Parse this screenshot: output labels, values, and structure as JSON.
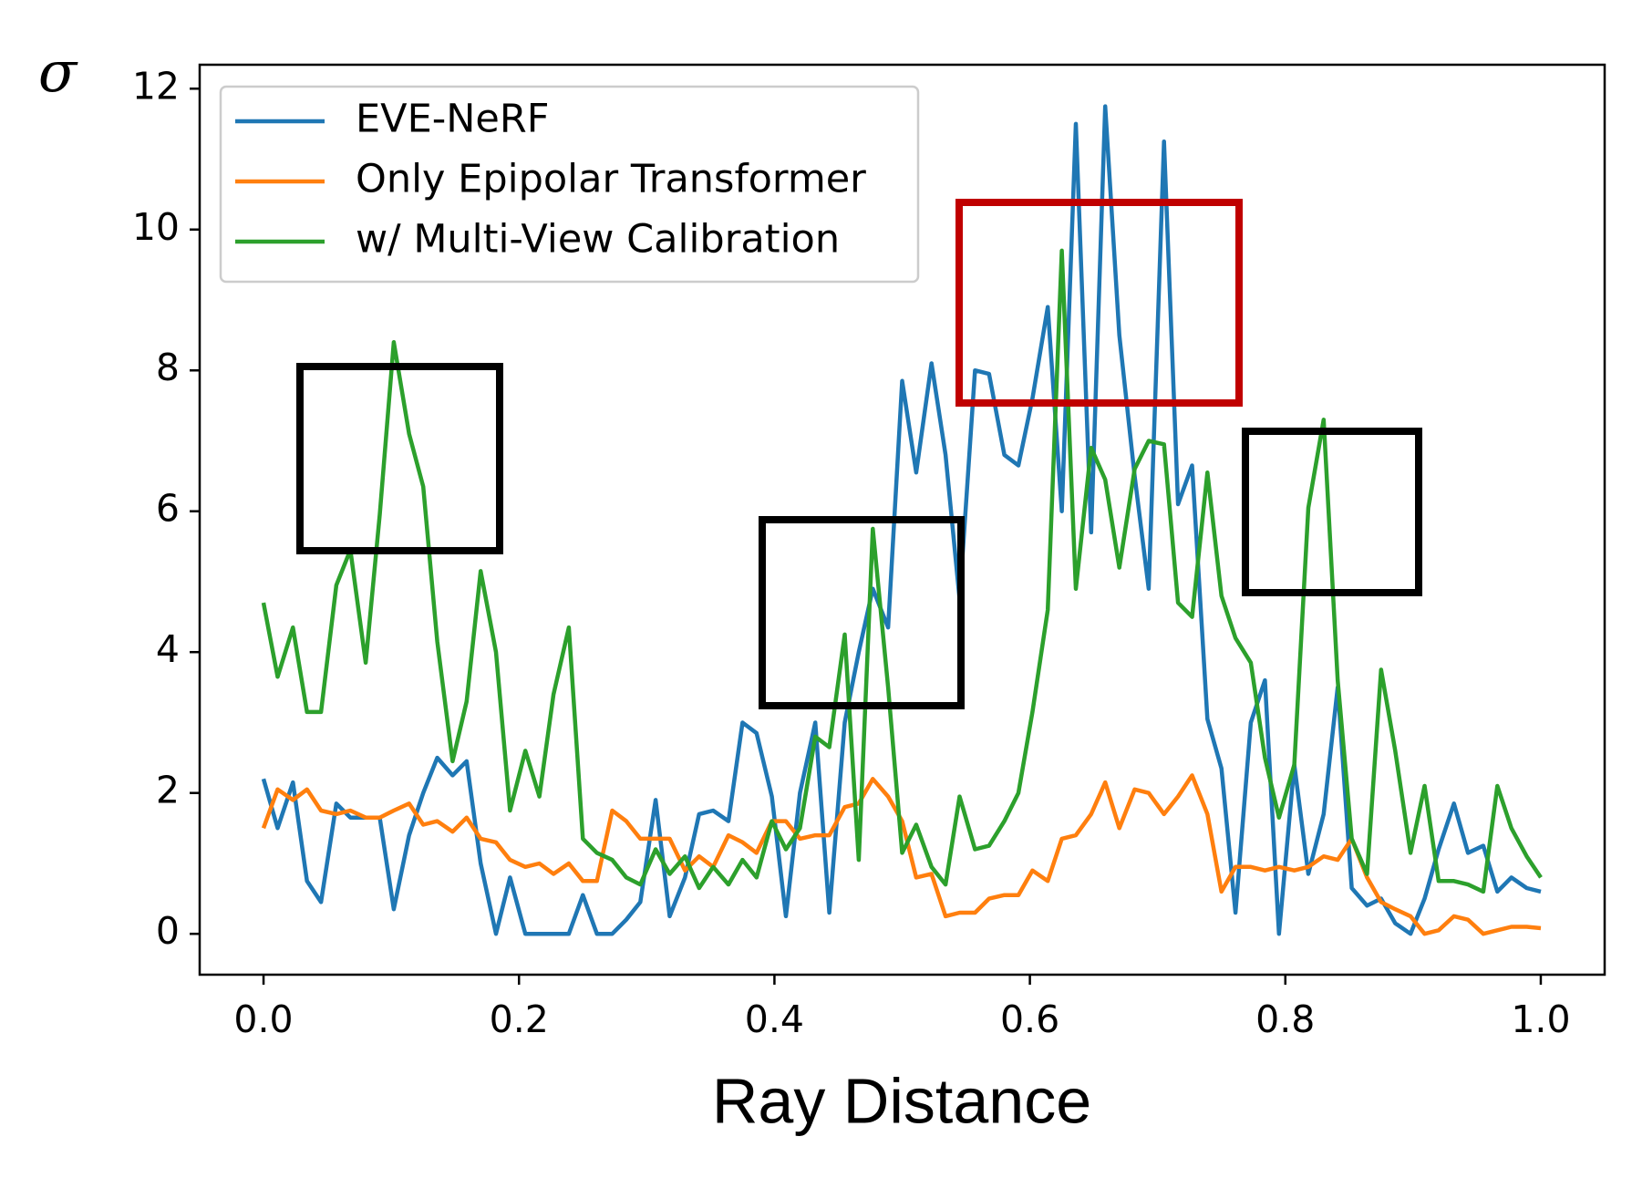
{
  "chart_data": {
    "type": "line",
    "ylabel": "σ",
    "xlabel": "Ray Distance",
    "x": [
      0,
      0.011,
      0.023,
      0.034,
      0.045,
      0.057,
      0.068,
      0.08,
      0.091,
      0.102,
      0.114,
      0.125,
      0.136,
      0.148,
      0.159,
      0.17,
      0.182,
      0.193,
      0.205,
      0.216,
      0.227,
      0.239,
      0.25,
      0.261,
      0.273,
      0.284,
      0.295,
      0.307,
      0.318,
      0.33,
      0.341,
      0.352,
      0.364,
      0.375,
      0.386,
      0.398,
      0.409,
      0.42,
      0.432,
      0.443,
      0.455,
      0.466,
      0.477,
      0.489,
      0.5,
      0.511,
      0.523,
      0.534,
      0.545,
      0.557,
      0.568,
      0.58,
      0.591,
      0.602,
      0.614,
      0.625,
      0.636,
      0.648,
      0.659,
      0.67,
      0.682,
      0.693,
      0.705,
      0.716,
      0.727,
      0.739,
      0.75,
      0.761,
      0.773,
      0.784,
      0.795,
      0.807,
      0.818,
      0.83,
      0.841,
      0.852,
      0.864,
      0.875,
      0.886,
      0.898,
      0.909,
      0.92,
      0.932,
      0.943,
      0.955,
      0.966,
      0.977,
      0.989,
      1.0
    ],
    "series": [
      {
        "name": "EVE-NeRF",
        "color": "#1f77b4",
        "values": [
          2.2,
          1.5,
          2.15,
          0.75,
          0.45,
          1.85,
          1.65,
          1.65,
          1.65,
          0.35,
          1.4,
          2.0,
          2.5,
          2.25,
          2.45,
          1.0,
          0.0,
          0.8,
          0.0,
          0.0,
          0.0,
          0.0,
          0.55,
          0.0,
          0.0,
          0.2,
          0.45,
          1.9,
          0.25,
          0.8,
          1.7,
          1.75,
          1.6,
          3.0,
          2.85,
          1.95,
          0.25,
          2.0,
          3.0,
          0.3,
          3.0,
          4.0,
          4.9,
          4.35,
          7.85,
          6.55,
          8.1,
          6.8,
          4.75,
          8.0,
          7.95,
          6.8,
          6.65,
          7.6,
          8.9,
          6.0,
          11.5,
          5.7,
          11.75,
          8.5,
          6.5,
          4.9,
          11.25,
          6.1,
          6.65,
          3.05,
          2.35,
          0.3,
          3.0,
          3.6,
          0.0,
          2.4,
          0.85,
          1.7,
          3.5,
          0.65,
          0.4,
          0.5,
          0.15,
          0.0,
          0.5,
          1.2,
          1.85,
          1.15,
          1.25,
          0.6,
          0.8,
          0.65,
          0.6
        ]
      },
      {
        "name": "Only Epipolar Transformer",
        "color": "#ff7f0e",
        "values": [
          1.5,
          2.05,
          1.9,
          2.05,
          1.75,
          1.7,
          1.75,
          1.65,
          1.65,
          1.75,
          1.85,
          1.55,
          1.6,
          1.45,
          1.65,
          1.35,
          1.3,
          1.05,
          0.95,
          1.0,
          0.85,
          1.0,
          0.75,
          0.75,
          1.75,
          1.6,
          1.35,
          1.35,
          1.35,
          0.9,
          1.1,
          0.95,
          1.4,
          1.3,
          1.15,
          1.6,
          1.6,
          1.35,
          1.4,
          1.4,
          1.8,
          1.85,
          2.2,
          1.95,
          1.6,
          0.8,
          0.85,
          0.25,
          0.3,
          0.3,
          0.5,
          0.55,
          0.55,
          0.9,
          0.75,
          1.35,
          1.4,
          1.7,
          2.15,
          1.5,
          2.05,
          2.0,
          1.7,
          1.95,
          2.25,
          1.7,
          0.6,
          0.95,
          0.95,
          0.9,
          0.95,
          0.9,
          0.95,
          1.1,
          1.05,
          1.35,
          0.8,
          0.45,
          0.35,
          0.25,
          0.0,
          0.05,
          0.25,
          0.2,
          0.0,
          0.05,
          0.1,
          0.1,
          0.08
        ]
      },
      {
        "name": "w/ Multi-View Calibration",
        "color": "#2ca02c",
        "values": [
          4.7,
          3.65,
          4.35,
          3.15,
          3.15,
          4.95,
          5.45,
          3.85,
          5.95,
          8.4,
          7.1,
          6.35,
          4.15,
          2.45,
          3.3,
          5.15,
          4.0,
          1.75,
          2.6,
          1.95,
          3.4,
          4.35,
          1.35,
          1.15,
          1.05,
          0.8,
          0.7,
          1.2,
          0.85,
          1.1,
          0.65,
          0.95,
          0.7,
          1.05,
          0.8,
          1.6,
          1.2,
          1.5,
          2.8,
          2.65,
          4.25,
          1.05,
          5.75,
          3.5,
          1.15,
          1.55,
          0.95,
          0.7,
          1.95,
          1.2,
          1.25,
          1.6,
          2.0,
          3.15,
          4.6,
          9.7,
          4.9,
          6.9,
          6.45,
          5.2,
          6.6,
          7.0,
          6.95,
          4.7,
          4.5,
          6.55,
          4.8,
          4.2,
          3.85,
          2.5,
          1.65,
          2.4,
          6.05,
          7.3,
          3.6,
          1.35,
          0.85,
          3.75,
          2.6,
          1.15,
          2.1,
          0.75,
          0.75,
          0.7,
          0.6,
          2.1,
          1.5,
          1.1,
          0.8
        ]
      }
    ],
    "xlim": [
      -0.05,
      1.05
    ],
    "ylim": [
      -0.58,
      12.34
    ],
    "xticks": [
      {
        "value": 0,
        "label": "0.0"
      },
      0.2,
      0.4,
      0.6,
      0.8,
      {
        "value": 1,
        "label": "1.0"
      }
    ],
    "yticks": [
      0,
      2,
      4,
      6,
      8,
      10,
      12
    ],
    "legend": "upper left"
  }
}
